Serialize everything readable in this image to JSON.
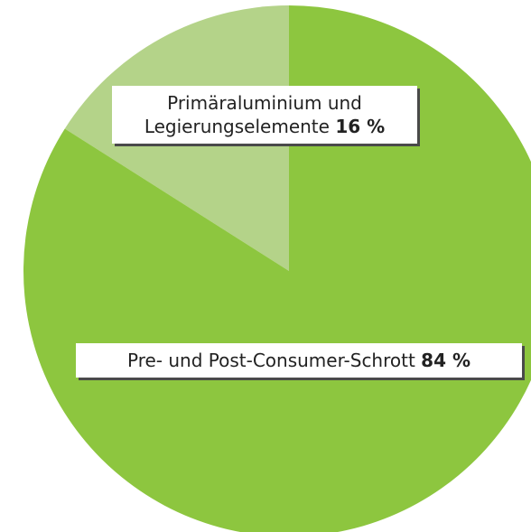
{
  "chart_data": {
    "type": "pie",
    "categories": [
      "Primäraluminium und Legierungselemente",
      "Pre- und Post-Consumer-Schrott"
    ],
    "values": [
      16,
      84
    ],
    "value_labels": [
      "16 %",
      "84 %"
    ],
    "colors": [
      "#b4d389",
      "#8dc63f"
    ]
  }
}
